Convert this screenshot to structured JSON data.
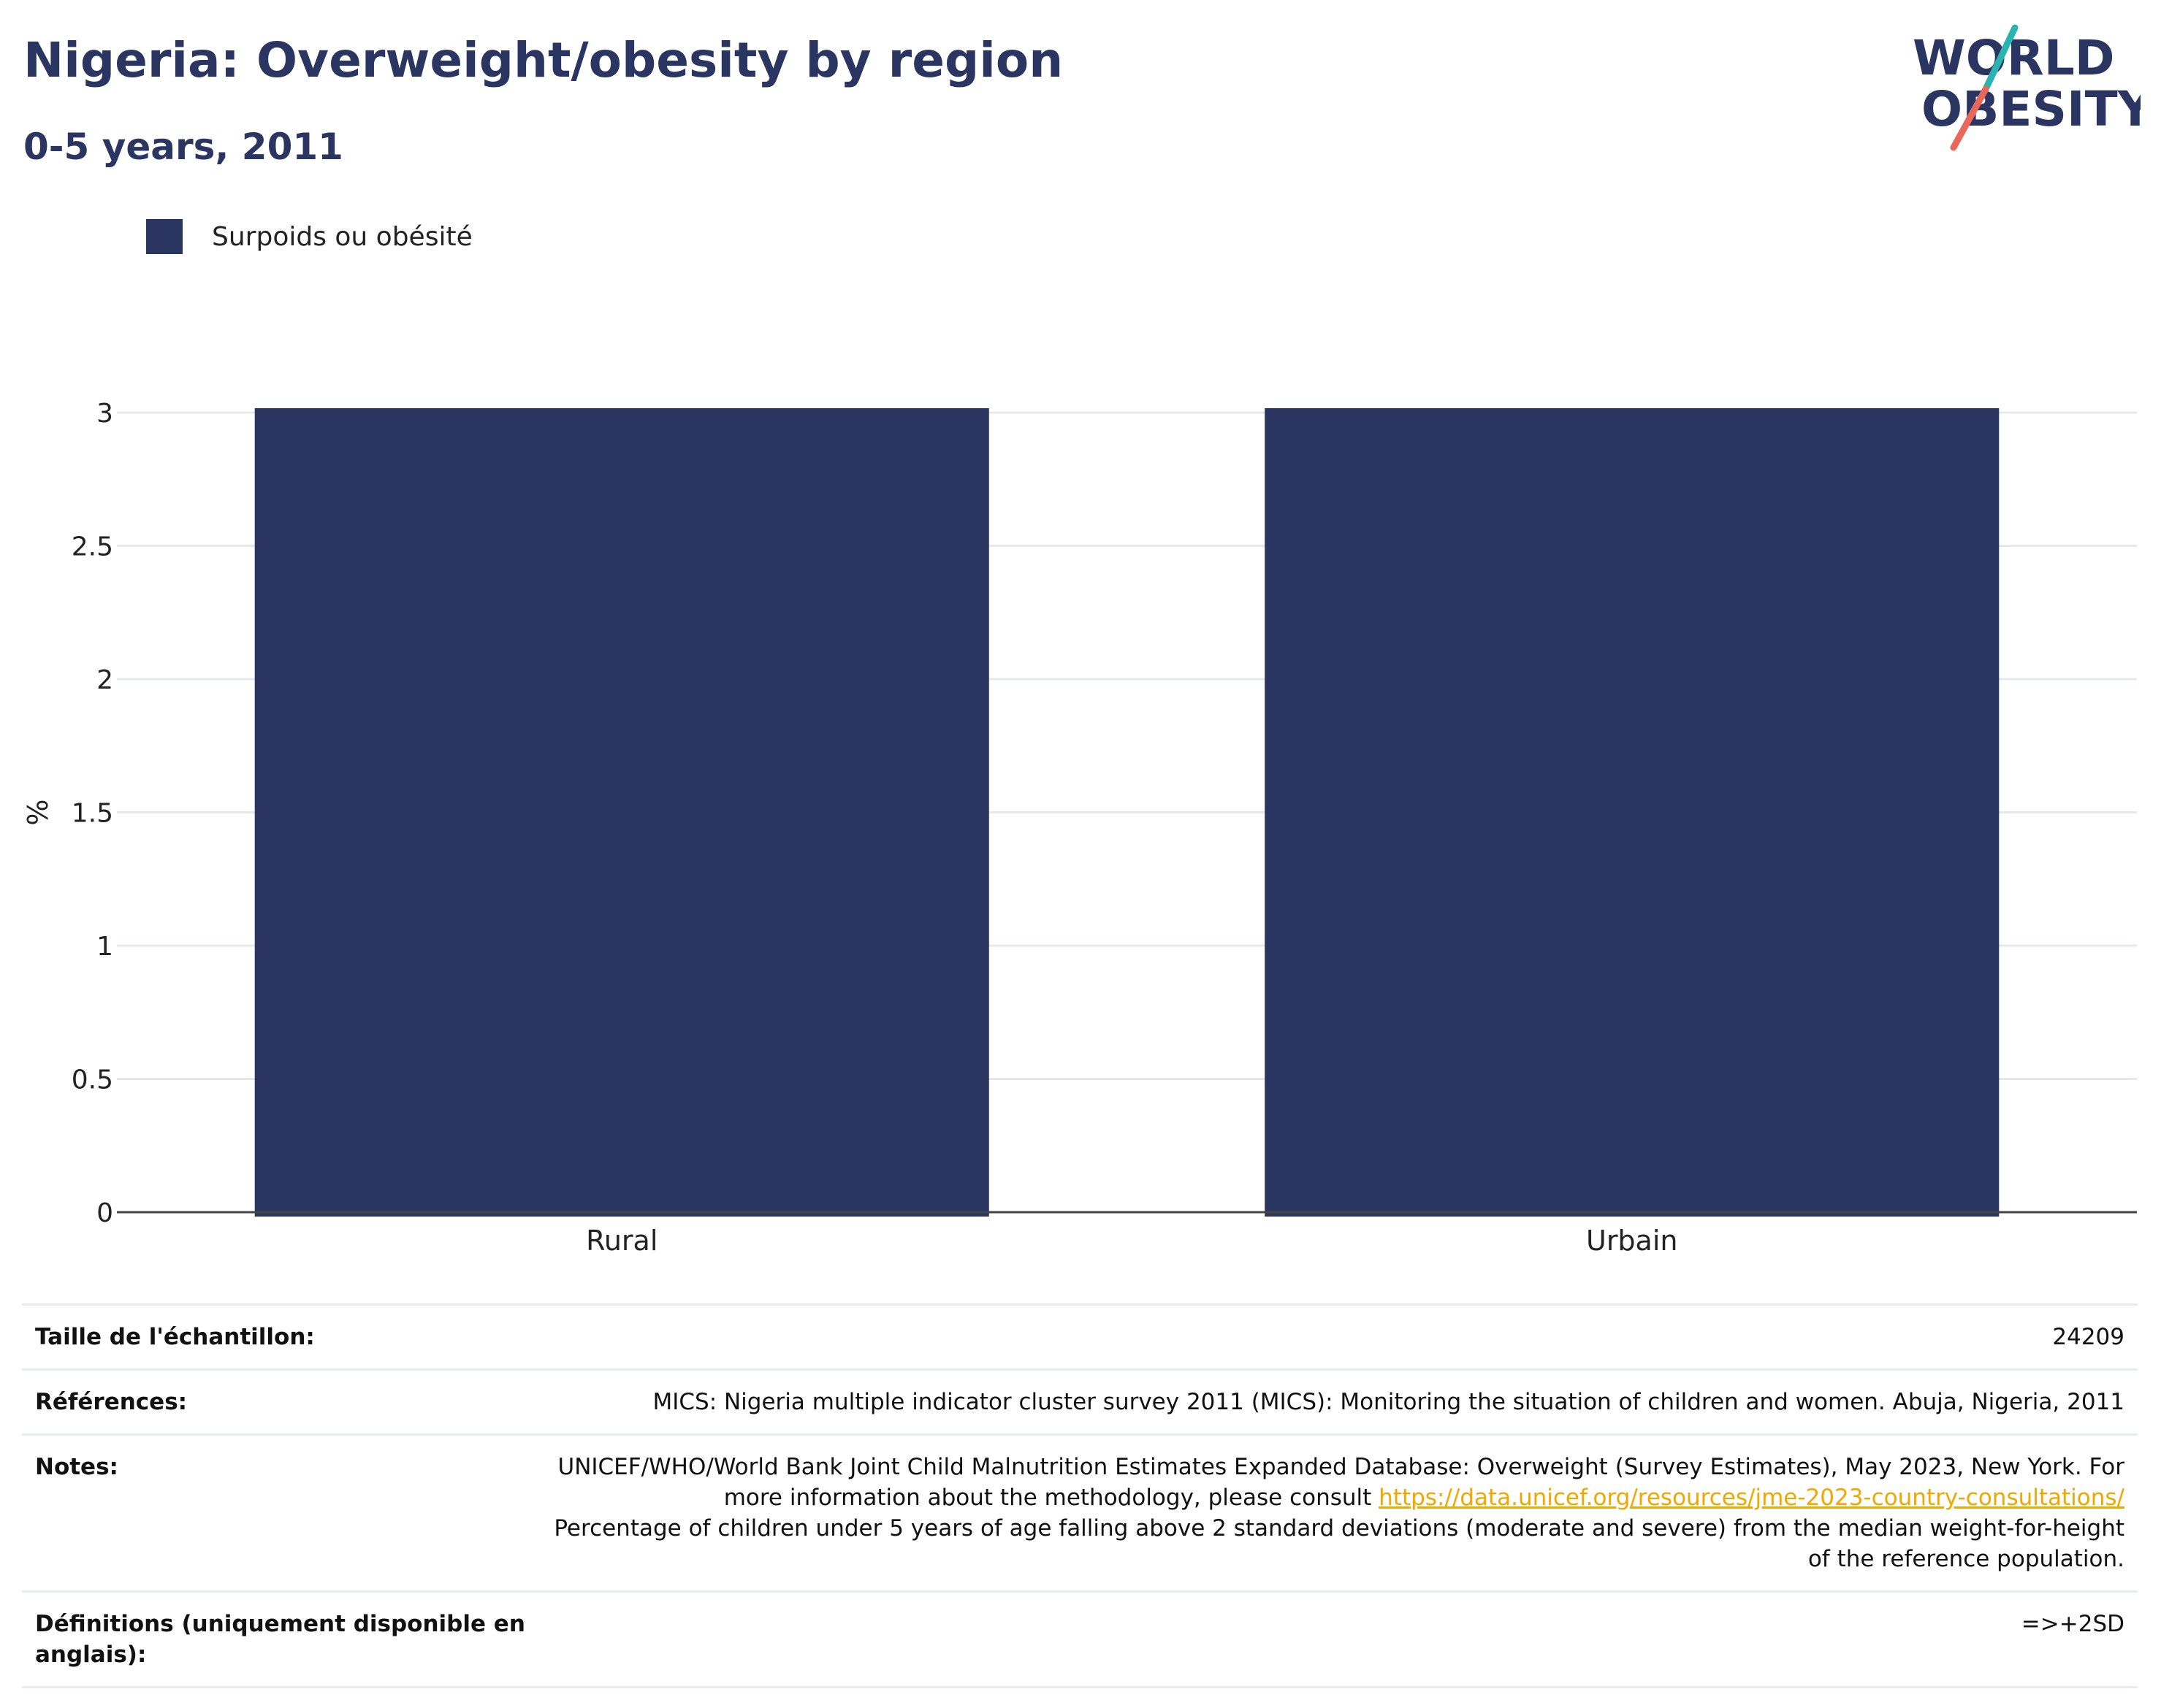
{
  "header": {
    "title": "Nigeria: Overweight/obesity by region",
    "subtitle": "0-5 years, 2011"
  },
  "logo": {
    "line1": "WORLD",
    "line2": "OBESITY"
  },
  "colors": {
    "bar": "#2a3661",
    "title": "#2a3661",
    "link": "#f0a800",
    "logo_teal": "#2bb3b1",
    "logo_coral": "#e8685a"
  },
  "chart_data": {
    "type": "bar",
    "categories": [
      "Rural",
      "Urbain"
    ],
    "series": [
      {
        "name": "Surpoids ou obésité",
        "values": [
          3.0,
          3.0
        ]
      }
    ],
    "ylabel": "%",
    "xlabel": "",
    "ylim": [
      0,
      3
    ],
    "yticks": [
      "0",
      "0.5",
      "1",
      "1.5",
      "2",
      "2.5",
      "3"
    ],
    "grid": true,
    "legend_position": "top-left"
  },
  "info": {
    "sample_label": "Taille de l'échantillon:",
    "sample_value": "24209",
    "refs_label": "Références:",
    "refs_value": "MICS: Nigeria multiple indicator cluster survey 2011 (MICS): Monitoring the situation of children and women. Abuja, Nigeria, 2011",
    "notes_label": "Notes:",
    "notes_text1": "UNICEF/WHO/World Bank Joint Child Malnutrition Estimates Expanded Database: Overweight (Survey Estimates), May 2023, New York. For more information about the methodology, please consult ",
    "notes_link": "https://data.unicef.org/resources/jme-2023-country-consultations/",
    "notes_text2": "Percentage of children under 5 years of age falling above 2 standard deviations (moderate and severe) from the median weight-for-height of the reference population.",
    "defs_label": "Définitions (uniquement disponible en anglais):",
    "defs_value": "=>+2SD"
  }
}
